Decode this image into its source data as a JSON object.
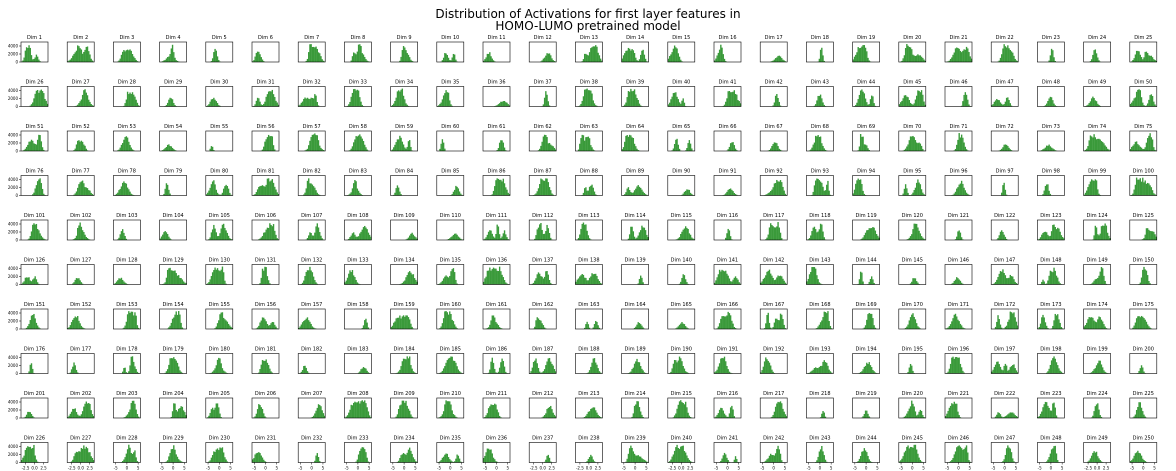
{
  "chart_data": {
    "type": "histogram-grid",
    "title": "Distribution of Activations for first layer features in\nHOMO-LUMO pretrained model",
    "title_lines": [
      "Distribution of Activations for first layer features in",
      "HOMO-LUMO pretrained model"
    ],
    "subplot_label_prefix": "Dim ",
    "n_subplots": 250,
    "rows": 10,
    "cols": 25,
    "bar_color": "#3a9a3a",
    "y_ticks": [
      "0",
      "2000",
      "4000"
    ],
    "ylim": [
      0,
      5000
    ],
    "xlim_default": [
      -6,
      6
    ],
    "x_tick_sets": {
      "default": [
        "-5",
        "0",
        "5"
      ],
      "narrow": [
        "-2.5",
        "0.0",
        "2.5"
      ]
    },
    "bottom_row_x_ticks": [
      "narrow",
      "narrow",
      "default",
      "default",
      "default",
      "default",
      "default",
      "default",
      "default",
      "default",
      "default",
      "narrow",
      "narrow",
      "default",
      "narrow",
      "default",
      "default",
      "default",
      "default",
      "default",
      "default",
      "default",
      "default",
      "narrow",
      "default"
    ]
  }
}
